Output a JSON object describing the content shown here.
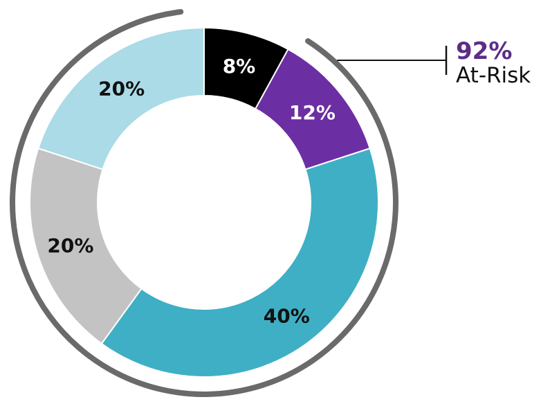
{
  "chart_data": {
    "type": "pie",
    "subtype": "donut",
    "start_angle_deg": 0,
    "direction": "clockwise",
    "legend": "none",
    "slices": [
      {
        "label": "8%",
        "value": 8,
        "color": "#000000",
        "label_color": "#ffffff"
      },
      {
        "label": "12%",
        "value": 12,
        "color": "#6c2ea3",
        "label_color": "#ffffff"
      },
      {
        "label": "40%",
        "value": 40,
        "color": "#3fafc5",
        "label_color": "#111111"
      },
      {
        "label": "20%",
        "value": 20,
        "color": "#c3c3c3",
        "label_color": "#111111"
      },
      {
        "label": "20%",
        "value": 20,
        "color": "#aadbe7",
        "label_color": "#111111"
      }
    ],
    "annotation": {
      "value": "92%",
      "label": "At-Risk",
      "value_color": "#5c2d87",
      "label_color": "#111111",
      "arc_color": "#6a6a6a",
      "arc_coverage_percent": 92,
      "callout_color": "#111111"
    }
  }
}
